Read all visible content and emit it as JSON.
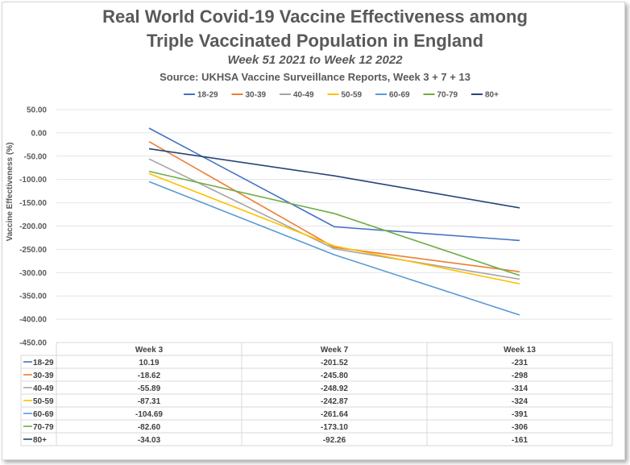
{
  "title_line1": "Real World Covid-19 Vaccine Effectiveness among",
  "title_line2": "Triple Vaccinated Population in England",
  "subtitle": "Week 51 2021 to Week 12 2022",
  "source": "Source: UKHSA Vaccine Surveillance Reports, Week 3 + 7 + 13",
  "chart_data": {
    "type": "line",
    "title": "Real World Covid-19 Vaccine Effectiveness among Triple Vaccinated Population in England",
    "subtitle": "Week 51 2021 to Week 12 2022",
    "ylabel": "Vaccine Effectiveness (%)",
    "xlabel": "",
    "categories": [
      "Week 3",
      "Week 7",
      "Week 13"
    ],
    "ylim": [
      -450,
      50
    ],
    "yticks": [
      "50.00",
      "0.00",
      "-50.00",
      "-100.00",
      "-150.00",
      "-200.00",
      "-250.00",
      "-300.00",
      "-350.00",
      "-400.00",
      "-450.00"
    ],
    "grid": true,
    "legend": "top",
    "data_table": true,
    "series": [
      {
        "name": "18-29",
        "color": "#4472C4",
        "values": [
          10.19,
          -201.52,
          -231
        ],
        "labels": [
          "10.19",
          "-201.52",
          "-231"
        ]
      },
      {
        "name": "30-39",
        "color": "#ED7D31",
        "values": [
          -18.62,
          -245.8,
          -298
        ],
        "labels": [
          "-18.62",
          "-245.80",
          "-298"
        ]
      },
      {
        "name": "40-49",
        "color": "#A5A5A5",
        "values": [
          -55.89,
          -248.92,
          -314
        ],
        "labels": [
          "-55.89",
          "-248.92",
          "-314"
        ]
      },
      {
        "name": "50-59",
        "color": "#FFC000",
        "values": [
          -87.31,
          -242.87,
          -324
        ],
        "labels": [
          "-87.31",
          "-242.87",
          "-324"
        ]
      },
      {
        "name": "60-69",
        "color": "#5B9BD5",
        "values": [
          -104.69,
          -261.64,
          -391
        ],
        "labels": [
          "-104.69",
          "-261.64",
          "-391"
        ]
      },
      {
        "name": "70-79",
        "color": "#70AD47",
        "values": [
          -82.6,
          -173.1,
          -306
        ],
        "labels": [
          "-82.60",
          "-173.10",
          "-306"
        ]
      },
      {
        "name": "80+",
        "color": "#264478",
        "values": [
          -34.03,
          -92.26,
          -161
        ],
        "labels": [
          "-34.03",
          "-92.26",
          "-161"
        ]
      }
    ]
  }
}
